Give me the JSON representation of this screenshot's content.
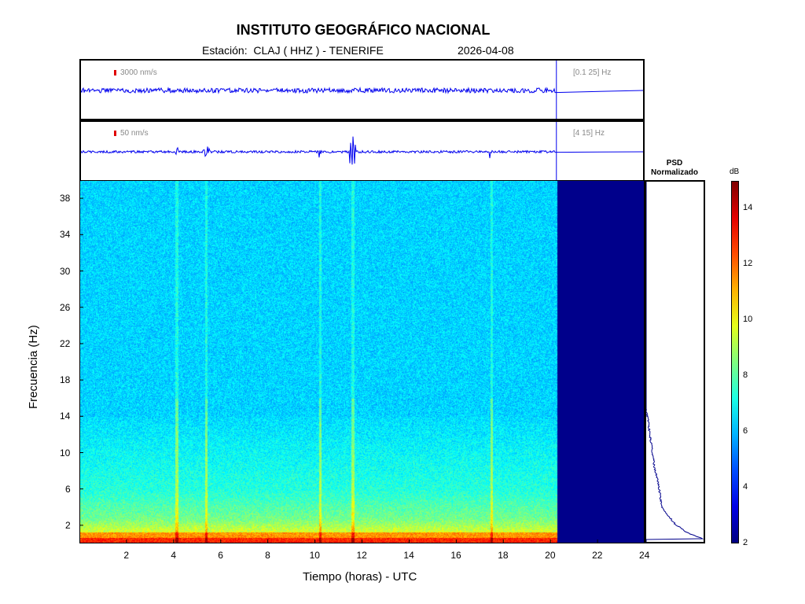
{
  "header": {
    "title": "INSTITUTO GEOGRÁFICO NACIONAL",
    "subtitle": "Estación:  CLAJ ( HHZ ) - TENERIFE",
    "date": "2026-04-08"
  },
  "traces": [
    {
      "amplitude_label": "3000 nm/s",
      "band_label": "[0.1 25] Hz"
    },
    {
      "amplitude_label": "50 nm/s",
      "band_label": "[4 15] Hz"
    }
  ],
  "psd": {
    "title_line1": "PSD",
    "title_line2": "Normalizado"
  },
  "colorbar": {
    "unit": "dB",
    "ticks": [
      "14",
      "12",
      "10",
      "8",
      "6",
      "4",
      "2"
    ],
    "range": [
      2,
      15
    ]
  },
  "colors": {
    "trace": "#0000ee",
    "scale_bar": "#e00000",
    "psd_line": "#00008b",
    "empty_region": "#00008b"
  },
  "chart_data": {
    "type": "heatmap",
    "title": "INSTITUTO GEOGRÁFICO NACIONAL",
    "xlabel": "Tiempo (horas) - UTC",
    "ylabel": "Frecuencia  (Hz)",
    "xlim": [
      0,
      24
    ],
    "ylim": [
      0,
      40
    ],
    "x_ticks": [
      "2",
      "4",
      "6",
      "8",
      "10",
      "12",
      "14",
      "16",
      "18",
      "20",
      "22",
      "24"
    ],
    "y_ticks": [
      "38",
      "34",
      "30",
      "26",
      "22",
      "18",
      "14",
      "10",
      "6",
      "2"
    ],
    "data_end_hour": 20.3,
    "events_hours": [
      4.1,
      5.35,
      10.2,
      11.6,
      17.5
    ],
    "psd_profile": [
      {
        "freq": 0.3,
        "level": 1.0
      },
      {
        "freq": 1,
        "level": 0.72
      },
      {
        "freq": 2,
        "level": 0.5
      },
      {
        "freq": 3,
        "level": 0.37
      },
      {
        "freq": 4,
        "level": 0.26
      },
      {
        "freq": 5,
        "level": 0.25
      },
      {
        "freq": 6,
        "level": 0.22
      },
      {
        "freq": 7,
        "level": 0.2
      },
      {
        "freq": 8,
        "level": 0.15
      },
      {
        "freq": 10,
        "level": 0.11
      },
      {
        "freq": 12,
        "level": 0.06
      },
      {
        "freq": 14,
        "level": 0.02
      },
      {
        "freq": 15,
        "level": 0.0
      },
      {
        "freq": 40,
        "level": 0.0
      }
    ]
  }
}
